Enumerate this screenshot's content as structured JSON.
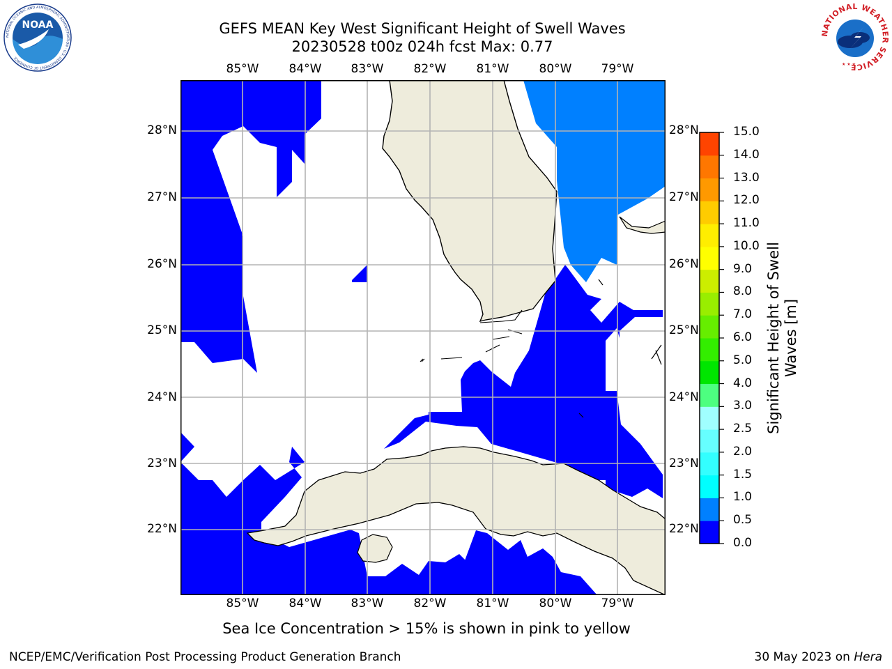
{
  "title": {
    "line1": "GEFS MEAN Key West Significant Height of Swell Waves",
    "line2": "20230528 t00z 024h fcst   Max: 0.77"
  },
  "map": {
    "lon_labels": [
      "85°W",
      "84°W",
      "83°W",
      "82°W",
      "81°W",
      "80°W",
      "79°W"
    ],
    "lat_labels": [
      "28°N",
      "27°N",
      "26°N",
      "25°N",
      "24°N",
      "23°N",
      "22°N"
    ],
    "land_color": "#eeecdc",
    "water_color": "#ffffff",
    "grid_color": "#b3b3b3"
  },
  "colorbar": {
    "title": "Significant Height of Swell Waves [m]",
    "tick_labels": [
      "0.0",
      "0.5",
      "1.0",
      "1.5",
      "2.0",
      "2.5",
      "3.0",
      "4.0",
      "5.0",
      "6.0",
      "7.0",
      "8.0",
      "9.0",
      "10.0",
      "11.0",
      "12.0",
      "13.0",
      "14.0",
      "15.0"
    ],
    "colors": [
      "#0000ff",
      "#0080ff",
      "#00ffff",
      "#33ffff",
      "#66ffff",
      "#a0ffff",
      "#4dff80",
      "#00e600",
      "#33ee00",
      "#66ee00",
      "#99ee00",
      "#ccee00",
      "#ffff00",
      "#ffee00",
      "#ffcc00",
      "#ff9900",
      "#ff7700",
      "#ff4400",
      "#ff0000"
    ]
  },
  "logos": {
    "noaa_text": "NOAA",
    "noaa_ring_text": "NATIONAL OCEANIC AND ATMOSPHERIC ADMINISTRATION · U.S. DEPARTMENT OF COMMERCE",
    "nws_ring_text": "NATIONAL WEATHER SERVICE"
  },
  "footer": {
    "note": "Sea Ice Concentration > 15% is shown in pink to yellow",
    "left": "NCEP/EMC/Verification Post Processing Product Generation Branch",
    "right_date": "30 May 2023 on ",
    "right_host": "Hera"
  }
}
